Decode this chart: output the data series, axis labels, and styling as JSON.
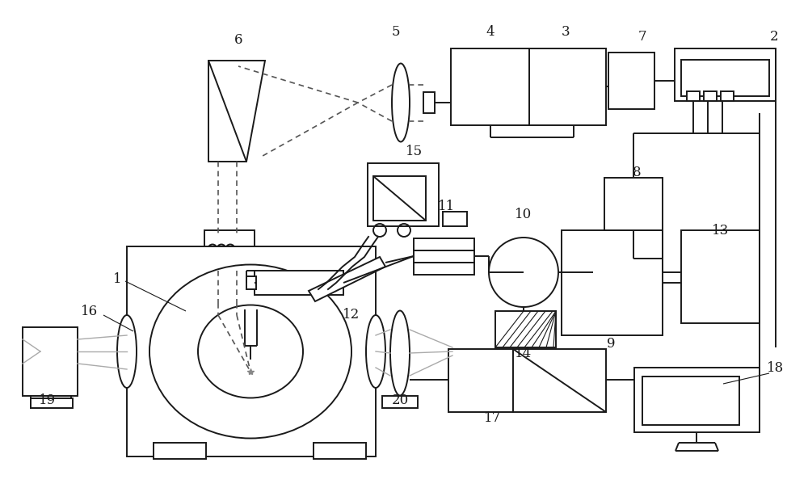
{
  "bg_color": "#ffffff",
  "line_color": "#1a1a1a",
  "dashed_color": "#555555",
  "figsize": [
    10.0,
    6.04
  ],
  "dpi": 100
}
